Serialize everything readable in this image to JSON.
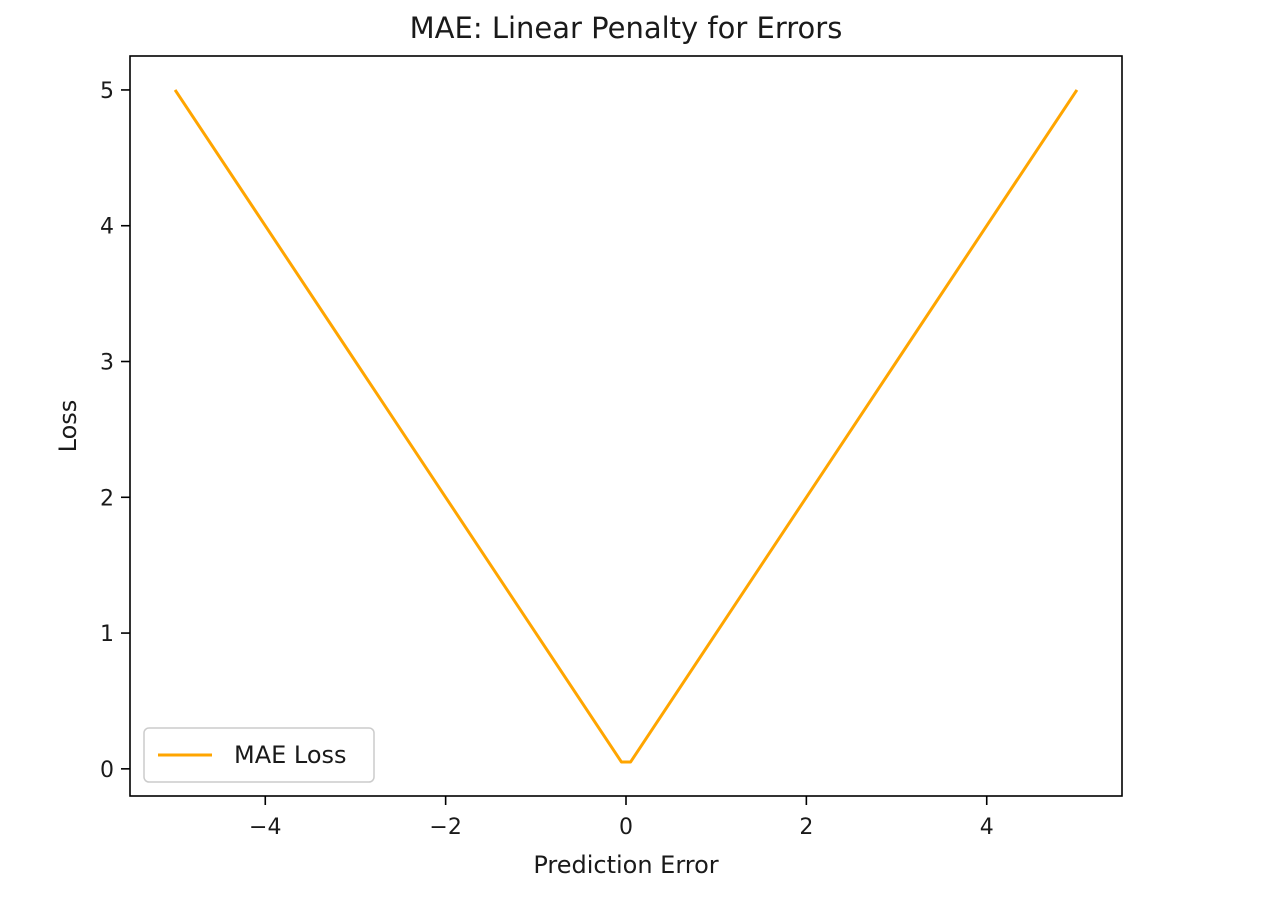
{
  "chart_data": {
    "type": "line",
    "title": "MAE: Linear Penalty for Errors",
    "xlabel": "Prediction Error",
    "ylabel": "Loss",
    "xlim": [
      -5.5,
      5.5
    ],
    "ylim": [
      -0.2,
      5.25
    ],
    "xticks": [
      -4,
      -2,
      0,
      2,
      4
    ],
    "xtick_labels": [
      "−4",
      "−2",
      "0",
      "2",
      "4"
    ],
    "yticks": [
      0,
      1,
      2,
      3,
      4,
      5
    ],
    "ytick_labels": [
      "0",
      "1",
      "2",
      "3",
      "4",
      "5"
    ],
    "grid": false,
    "legend_position": "lower-left",
    "series": [
      {
        "name": "MAE Loss",
        "color": "#FFA500",
        "x": [
          -5,
          -4,
          -3,
          -2,
          -1,
          -0.05,
          0.05,
          1,
          2,
          3,
          4,
          5
        ],
        "y": [
          5,
          4,
          3,
          2,
          1,
          0.05,
          0.05,
          1,
          2,
          3,
          4,
          5
        ]
      }
    ]
  }
}
